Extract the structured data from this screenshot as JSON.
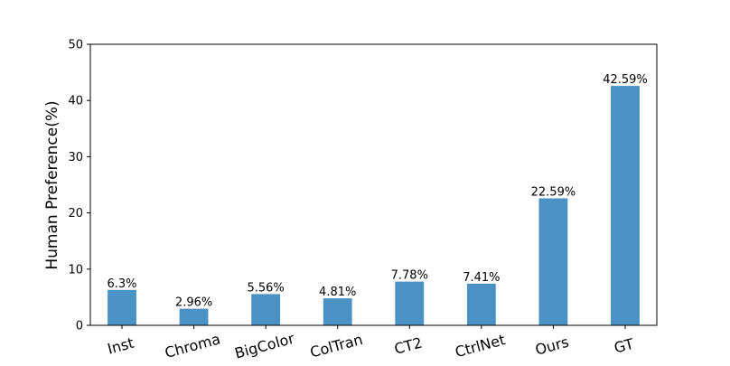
{
  "chart_data": {
    "type": "bar",
    "categories": [
      "Inst",
      "Chroma",
      "BigColor",
      "ColTran",
      "CT2",
      "CtrlNet",
      "Ours",
      "GT"
    ],
    "values": [
      6.3,
      2.96,
      5.56,
      4.81,
      7.78,
      7.41,
      22.59,
      42.59
    ],
    "value_labels": [
      "6.3%",
      "2.96%",
      "5.56%",
      "4.81%",
      "7.78%",
      "7.41%",
      "22.59%",
      "42.59%"
    ],
    "xlabel": "",
    "ylabel": "Human Preference(%)",
    "ylim": [
      0,
      50
    ],
    "yticks": [
      0,
      10,
      20,
      30,
      40,
      50
    ],
    "grid": false,
    "bar_color": "#4a91c4"
  }
}
